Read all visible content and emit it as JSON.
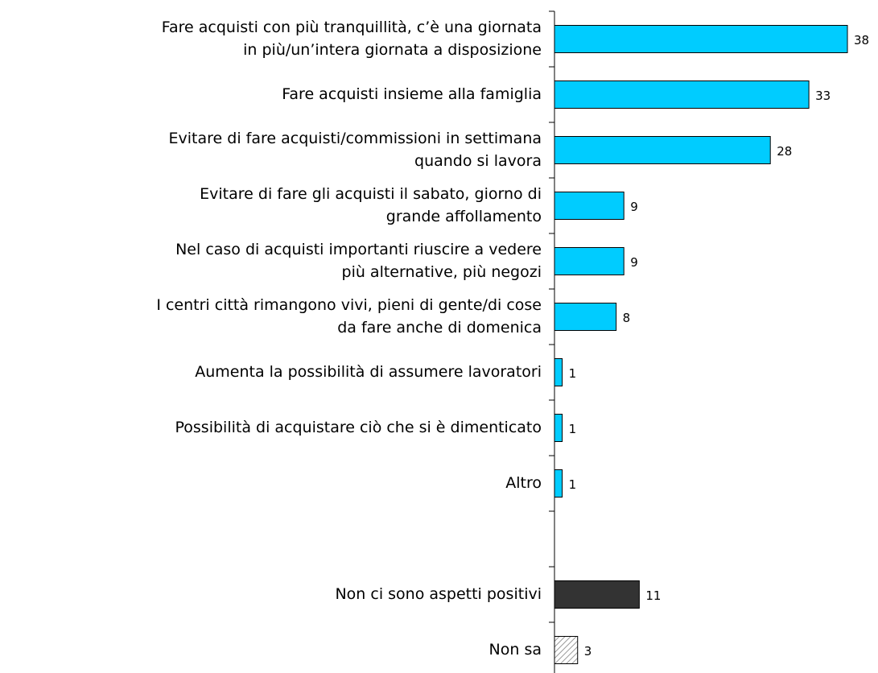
{
  "chart_data": {
    "type": "barh",
    "categories": [
      [
        "Fare acquisti con più tranquillità, c’è una giornata",
        "in più/un’intera giornata a disposizione"
      ],
      [
        "Fare acquisti insieme alla famiglia"
      ],
      [
        "Evitare di fare acquisti/commissioni in settimana",
        "quando si lavora"
      ],
      [
        "Evitare di fare gli acquisti il sabato, giorno di",
        "grande affollamento"
      ],
      [
        "Nel caso di acquisti importanti riuscire a vedere",
        "più alternative, più negozi"
      ],
      [
        "I centri città rimangono vivi, pieni di gente/di cose",
        "da fare anche di domenica"
      ],
      [
        "Aumenta la possibilità di assumere lavoratori"
      ],
      [
        "Possibilità di acquistare ciò che si è dimenticato"
      ],
      [
        "Altro"
      ],
      null,
      [
        "Non ci sono aspetti positivi"
      ],
      [
        "Non sa"
      ]
    ],
    "values": [
      38,
      33,
      28,
      9,
      9,
      8,
      1,
      1,
      1,
      null,
      11,
      3
    ],
    "colors": [
      "#00ccff",
      "#00ccff",
      "#00ccff",
      "#00ccff",
      "#00ccff",
      "#00ccff",
      "#00ccff",
      "#00ccff",
      "#00ccff",
      null,
      "#333333",
      "#bfbfbf"
    ],
    "hatched": [
      false,
      false,
      false,
      false,
      false,
      false,
      false,
      false,
      false,
      false,
      false,
      true
    ]
  }
}
